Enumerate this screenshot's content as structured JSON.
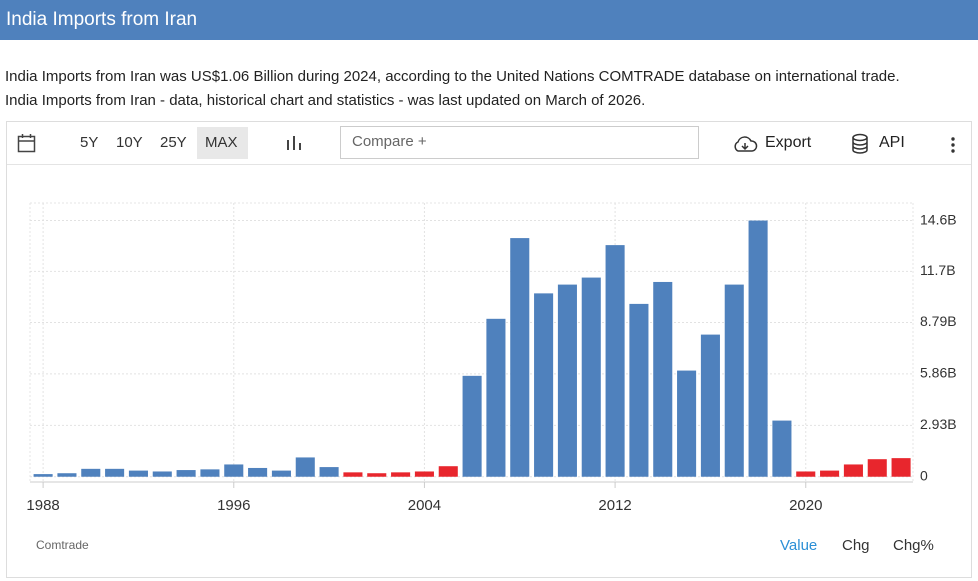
{
  "header": {
    "title": "India Imports from Iran"
  },
  "description": [
    "India Imports from Iran was US$1.06 Billion during 2024, according to the United Nations COMTRADE database on international trade.",
    "India Imports from Iran - data, historical chart and statistics - was last updated on March of 2026."
  ],
  "toolbar": {
    "ranges": [
      "5Y",
      "10Y",
      "25Y",
      "MAX"
    ],
    "compare": "Compare +",
    "export": "Export",
    "api": "API"
  },
  "footer": {
    "source": "Comtrade",
    "tabs": [
      "Value",
      "Chg",
      "Chg%"
    ]
  },
  "chart_data": {
    "type": "bar",
    "x": [
      1988,
      1989,
      1990,
      1991,
      1992,
      1993,
      1994,
      1995,
      1996,
      1997,
      1998,
      1999,
      2000,
      2001,
      2002,
      2003,
      2004,
      2005,
      2006,
      2007,
      2008,
      2009,
      2010,
      2011,
      2012,
      2013,
      2014,
      2015,
      2016,
      2017,
      2018,
      2019,
      2020,
      2021,
      2022,
      2023,
      2024
    ],
    "values": [
      0.15,
      0.2,
      0.45,
      0.45,
      0.35,
      0.3,
      0.38,
      0.42,
      0.7,
      0.5,
      0.35,
      1.1,
      0.55,
      0.25,
      0.2,
      0.25,
      0.3,
      0.6,
      5.75,
      9.0,
      13.6,
      10.45,
      10.95,
      11.35,
      13.2,
      9.85,
      11.1,
      6.05,
      8.1,
      10.95,
      14.6,
      3.2,
      0.3,
      0.35,
      0.7,
      1.0,
      1.06
    ],
    "colors": [
      "#4f81bd",
      "#4f81bd",
      "#4f81bd",
      "#4f81bd",
      "#4f81bd",
      "#4f81bd",
      "#4f81bd",
      "#4f81bd",
      "#4f81bd",
      "#4f81bd",
      "#4f81bd",
      "#4f81bd",
      "#4f81bd",
      "#e8262d",
      "#e8262d",
      "#e8262d",
      "#e8262d",
      "#e8262d",
      "#4f81bd",
      "#4f81bd",
      "#4f81bd",
      "#4f81bd",
      "#4f81bd",
      "#4f81bd",
      "#4f81bd",
      "#4f81bd",
      "#4f81bd",
      "#4f81bd",
      "#4f81bd",
      "#4f81bd",
      "#4f81bd",
      "#4f81bd",
      "#e8262d",
      "#e8262d",
      "#e8262d",
      "#e8262d",
      "#e8262d"
    ],
    "xlim": [
      1987.45,
      2024.5
    ],
    "xticks": [
      1988,
      1996,
      2004,
      2012,
      2020
    ],
    "ylim": [
      -0.3,
      15.6
    ],
    "yticks": [
      0,
      {
        "value": 2.93,
        "label": "2.93B"
      },
      {
        "value": 5.86,
        "label": "5.86B"
      },
      {
        "value": 8.79,
        "label": "8.79B"
      },
      {
        "value": 11.7,
        "label": "11.7B"
      },
      {
        "value": 14.6,
        "label": "14.6B"
      }
    ],
    "grid": true
  }
}
